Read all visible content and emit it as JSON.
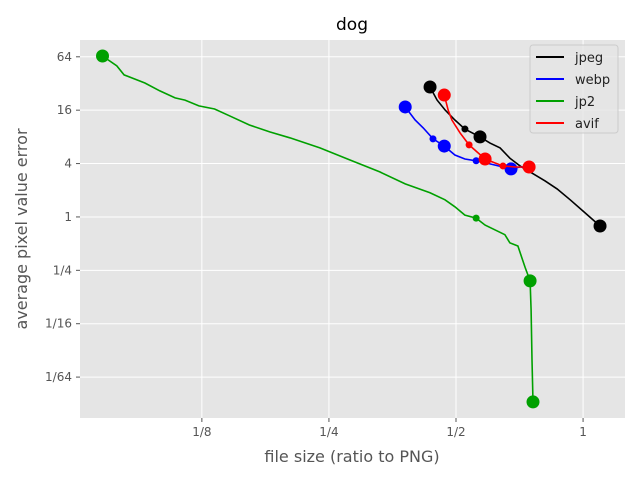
{
  "chart_data": {
    "type": "line",
    "title": "dog",
    "xlabel": "file size (ratio to PNG)",
    "ylabel": "average pixel value error",
    "xscale": "log2",
    "yscale": "log2",
    "xlim": [
      0.0643,
      1.257
    ],
    "ylim": [
      0.0054,
      99
    ],
    "xticks": [
      {
        "v": 0.125,
        "label": "1/8"
      },
      {
        "v": 0.25,
        "label": "1/4"
      },
      {
        "v": 0.5,
        "label": "1/2"
      },
      {
        "v": 1,
        "label": "1"
      }
    ],
    "yticks": [
      {
        "v": 0.015625,
        "label": "1/64"
      },
      {
        "v": 0.0625,
        "label": "1/16"
      },
      {
        "v": 0.25,
        "label": "1/4"
      },
      {
        "v": 1,
        "label": "1"
      },
      {
        "v": 4,
        "label": "4"
      },
      {
        "v": 16,
        "label": "16"
      },
      {
        "v": 64,
        "label": "64"
      }
    ],
    "grid": true,
    "legend": "top-right",
    "series": [
      {
        "name": "jpeg",
        "color": "#000000",
        "x": [
          0.434,
          0.451,
          0.471,
          0.497,
          0.525,
          0.57,
          0.602,
          0.636,
          0.671,
          0.709,
          0.749,
          0.813,
          0.868,
          0.932,
          1.011,
          1.097
        ],
        "y": [
          29.2,
          20.8,
          16.1,
          12.4,
          9.8,
          8.0,
          6.8,
          6.0,
          4.6,
          3.76,
          3.22,
          2.55,
          2.07,
          1.56,
          1.11,
          0.79
        ],
        "big_markers": [
          0,
          5,
          15
        ],
        "small_markers": [
          4
        ]
      },
      {
        "name": "webp",
        "color": "#0000ff",
        "x": [
          0.379,
          0.4,
          0.418,
          0.441,
          0.469,
          0.497,
          0.525,
          0.558,
          0.602,
          0.675,
          0.709,
          0.749
        ],
        "y": [
          17.4,
          12.4,
          10.1,
          7.6,
          6.3,
          5.0,
          4.5,
          4.3,
          3.96,
          3.48,
          3.66,
          3.66
        ],
        "big_markers": [
          0,
          4,
          9
        ],
        "small_markers": [
          3,
          7
        ]
      },
      {
        "name": "jp2",
        "color": "#00a000",
        "x": [
          0.0727,
          0.0786,
          0.0818,
          0.0916,
          0.0994,
          0.108,
          0.114,
          0.123,
          0.134,
          0.146,
          0.162,
          0.181,
          0.202,
          0.238,
          0.28,
          0.33,
          0.379,
          0.434,
          0.471,
          0.497,
          0.525,
          0.558,
          0.586,
          0.653,
          0.671,
          0.701,
          0.717,
          0.729,
          0.749,
          0.753,
          0.757,
          0.761
        ],
        "y": [
          65.3,
          50.5,
          40,
          32.4,
          26.4,
          22.0,
          20.8,
          17.9,
          16.5,
          13.7,
          10.9,
          9.1,
          7.8,
          6.0,
          4.4,
          3.22,
          2.36,
          1.87,
          1.56,
          1.3,
          1.05,
          0.97,
          0.81,
          0.63,
          0.51,
          0.47,
          0.34,
          0.27,
          0.19,
          0.089,
          0.0244,
          0.0082
        ],
        "big_markers": [
          0,
          28,
          31
        ],
        "small_markers": [
          21
        ]
      },
      {
        "name": "avif",
        "color": "#ff0000",
        "x": [
          0.469,
          0.479,
          0.489,
          0.511,
          0.537,
          0.561,
          0.586,
          0.619,
          0.646,
          0.69,
          0.745
        ],
        "y": [
          23.7,
          16.1,
          12.4,
          8.9,
          6.5,
          5.4,
          4.5,
          4.06,
          3.76,
          3.66,
          3.66
        ],
        "big_markers": [
          0,
          6,
          10
        ],
        "small_markers": [
          4,
          8
        ]
      }
    ]
  }
}
